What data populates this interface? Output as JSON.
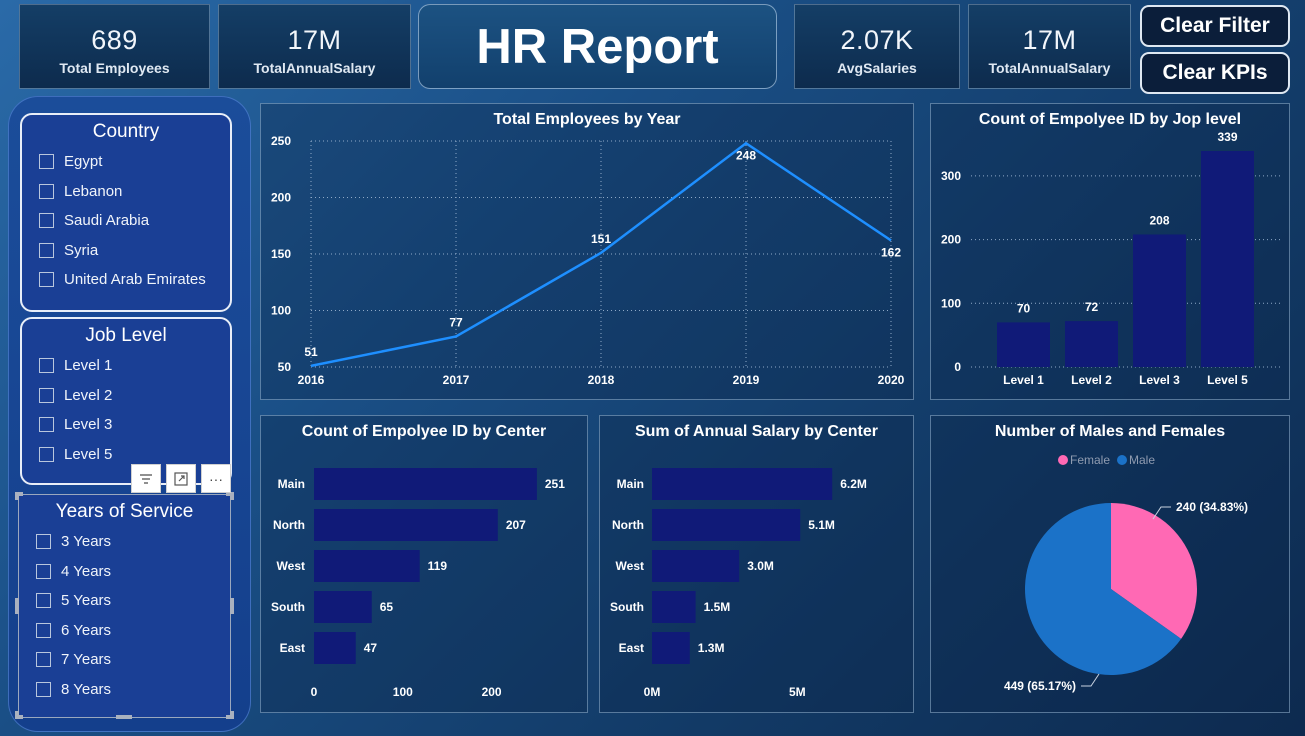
{
  "kpis": {
    "total_employees": {
      "value": "689",
      "label": "Total Employees"
    },
    "total_annual_salary_1": {
      "value": "17M",
      "label": "TotalAnnualSalary"
    },
    "avg_salaries": {
      "value": "2.07K",
      "label": "AvgSalaries"
    },
    "total_annual_salary_2": {
      "value": "17M",
      "label": "TotalAnnualSalary"
    }
  },
  "report_title": "HR Report",
  "buttons": {
    "clear_filter": "Clear Filter",
    "clear_kpis": "Clear KPIs"
  },
  "slicers": {
    "country": {
      "title": "Country",
      "options": [
        "Egypt",
        "Lebanon",
        "Saudi Arabia",
        "Syria",
        "United Arab Emirates"
      ]
    },
    "job_level": {
      "title": "Job Level",
      "options": [
        "Level 1",
        "Level 2",
        "Level 3",
        "Level 5"
      ]
    },
    "years_of_service": {
      "title": "Years of Service",
      "options": [
        "3 Years",
        "4 Years",
        "5 Years",
        "6 Years",
        "7 Years",
        "8 Years"
      ]
    }
  },
  "visual_controls": {
    "filter": "filter-icon",
    "focus": "focus-mode-icon",
    "more": "···"
  },
  "colors": {
    "line": "#1e8fff",
    "bar": "#101a78",
    "female": "#ff69b4",
    "male": "#1b72c8"
  },
  "chart_data": [
    {
      "type": "line",
      "title": "Total Employees by Year",
      "x": [
        "2016",
        "2017",
        "2018",
        "2019",
        "2020"
      ],
      "values": [
        51,
        77,
        151,
        248,
        162
      ],
      "ylim": [
        50,
        250
      ],
      "yticks": [
        50,
        100,
        150,
        200,
        250
      ],
      "grid": true
    },
    {
      "type": "bar",
      "title": "Count of Empolyee ID by Jop level",
      "categories": [
        "Level 1",
        "Level 2",
        "Level 3",
        "Level 5"
      ],
      "values": [
        70,
        72,
        208,
        339
      ],
      "ylim": [
        0,
        350
      ],
      "yticks": [
        0,
        100,
        200,
        300
      ],
      "grid": true
    },
    {
      "type": "bar",
      "orientation": "horizontal",
      "title": "Count of Empolyee ID by Center",
      "categories": [
        "Main",
        "North",
        "West",
        "South",
        "East"
      ],
      "values": [
        251,
        207,
        119,
        65,
        47
      ],
      "xlim": [
        0,
        250
      ],
      "xticks": [
        0,
        100,
        200
      ]
    },
    {
      "type": "bar",
      "orientation": "horizontal",
      "title": "Sum of Annual Salary by Center",
      "categories": [
        "Main",
        "North",
        "West",
        "South",
        "East"
      ],
      "values": [
        6.2,
        5.1,
        3.0,
        1.5,
        1.3
      ],
      "data_labels": [
        "6.2M",
        "5.1M",
        "3.0M",
        "1.5M",
        "1.3M"
      ],
      "xlim": [
        0,
        7.5
      ],
      "xticks": [
        0,
        5
      ],
      "xtick_labels": [
        "0M",
        "5M"
      ]
    },
    {
      "type": "pie",
      "title": "Number of Males and Females",
      "legend": [
        "Female",
        "Male"
      ],
      "values": [
        240,
        449
      ],
      "data_labels": [
        "240 (34.83%)",
        "449 (65.17%)"
      ],
      "legend_position": "top"
    }
  ]
}
